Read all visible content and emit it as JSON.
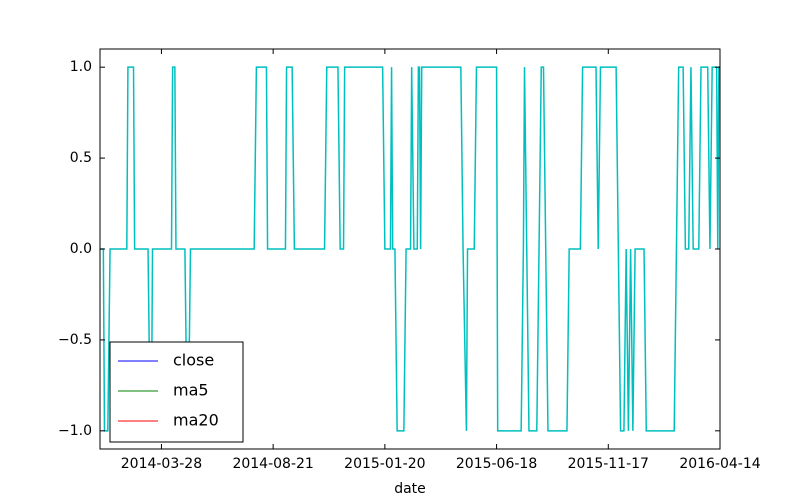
{
  "chart_data": {
    "type": "line",
    "xlabel": "date",
    "xlim": [
      0,
      555
    ],
    "xticks": [
      {
        "value": 55,
        "label": "2014-03-28"
      },
      {
        "value": 155,
        "label": "2014-08-21"
      },
      {
        "value": 255,
        "label": "2015-01-20"
      },
      {
        "value": 355,
        "label": "2015-06-18"
      },
      {
        "value": 455,
        "label": "2015-11-17"
      },
      {
        "value": 555,
        "label": "2016-04-14"
      }
    ],
    "ylim": [
      -1.1,
      1.1
    ],
    "yticks": [
      {
        "value": -1,
        "label": "−1.0"
      },
      {
        "value": -0.5,
        "label": "−0.5"
      },
      {
        "value": 0,
        "label": "0.0"
      },
      {
        "value": 0.5,
        "label": "0.5"
      },
      {
        "value": 1,
        "label": "1.0"
      }
    ],
    "legend_position": "lower left",
    "legend": [
      {
        "name": "close",
        "color": "#0000ff"
      },
      {
        "name": "ma5",
        "color": "#008000"
      },
      {
        "name": "ma20",
        "color": "#ff0000"
      }
    ],
    "series": [
      {
        "color": "#00bfbf",
        "x": [
          0,
          3,
          4,
          7,
          9,
          24,
          25,
          30,
          31,
          43,
          45,
          46,
          47,
          64,
          65,
          67,
          68,
          76,
          78,
          79,
          81,
          138,
          140,
          149,
          150,
          166,
          167,
          172,
          174,
          201,
          203,
          213,
          215,
          218,
          219,
          253,
          255,
          260,
          261,
          262,
          264,
          266,
          272,
          274,
          278,
          279,
          281,
          284,
          285,
          286,
          287,
          288,
          323,
          325,
          328,
          329,
          335,
          337,
          355,
          356,
          377,
          379,
          380,
          382,
          384,
          391,
          393,
          395,
          397,
          399,
          401,
          418,
          420,
          430,
          432,
          444,
          446,
          448,
          462,
          464,
          466,
          469,
          471,
          473,
          475,
          477,
          479,
          487,
          489,
          514,
          516,
          518,
          522,
          524,
          527,
          529,
          531,
          536,
          538,
          544,
          546,
          548,
          552,
          553,
          554,
          555
        ],
        "values": [
          0,
          0,
          -1,
          -1,
          0,
          0,
          1,
          1,
          0,
          0,
          -1,
          -1,
          0,
          0,
          1,
          1,
          0,
          0,
          -1,
          -1,
          0,
          0,
          1,
          1,
          0,
          0,
          1,
          1,
          0,
          0,
          1,
          1,
          0,
          0,
          1,
          1,
          0,
          0,
          1,
          0,
          0,
          -1,
          -1,
          0,
          0,
          1,
          0,
          0,
          1,
          1,
          0,
          1,
          1,
          0,
          -1,
          0,
          0,
          1,
          1,
          -1,
          -1,
          0,
          1,
          0,
          -1,
          -1,
          0,
          1,
          1,
          0,
          -1,
          -1,
          0,
          0,
          1,
          1,
          0,
          1,
          1,
          0,
          -1,
          -1,
          0,
          -1,
          0,
          -1,
          0,
          0,
          -1,
          -1,
          0,
          1,
          1,
          0,
          0,
          1,
          0,
          0,
          1,
          1,
          0,
          1,
          1,
          0,
          1,
          1
        ]
      }
    ]
  }
}
